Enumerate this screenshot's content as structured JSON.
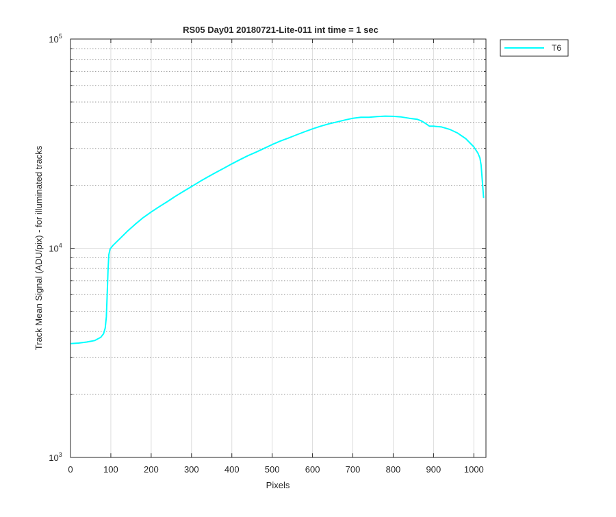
{
  "figure": {
    "background": "#ffffff"
  },
  "chart_data": {
    "type": "line",
    "title": "RS05 Day01 20180721-Lite-011 int time = 1 sec",
    "xlabel": "Pixels",
    "ylabel": "Track Mean Signal (ADU/pix) - for illuminated tracks",
    "xlim": [
      0,
      1030
    ],
    "ylim": [
      1000,
      100000
    ],
    "yscale": "log",
    "grid": true,
    "grid_style": "dotted minor, light major",
    "x_ticks": [
      "0",
      "100",
      "200",
      "300",
      "400",
      "500",
      "600",
      "700",
      "800",
      "900",
      "1000"
    ],
    "y_ticks": [
      {
        "base": "10",
        "exp": "3"
      },
      {
        "base": "10",
        "exp": "4"
      },
      {
        "base": "10",
        "exp": "5"
      }
    ],
    "legend": {
      "placement": "outside-top-right",
      "entries": [
        {
          "label": "T6",
          "color": "#00ffff"
        }
      ]
    },
    "series": [
      {
        "name": "T6",
        "color": "#00ffff",
        "points": [
          [
            1,
            3500
          ],
          [
            20,
            3520
          ],
          [
            40,
            3560
          ],
          [
            60,
            3620
          ],
          [
            75,
            3750
          ],
          [
            82,
            3900
          ],
          [
            86,
            4150
          ],
          [
            89,
            4700
          ],
          [
            91,
            6000
          ],
          [
            93,
            7800
          ],
          [
            95,
            9300
          ],
          [
            98,
            9900
          ],
          [
            105,
            10300
          ],
          [
            120,
            11000
          ],
          [
            140,
            12000
          ],
          [
            160,
            13000
          ],
          [
            180,
            14000
          ],
          [
            200,
            14900
          ],
          [
            220,
            15800
          ],
          [
            240,
            16700
          ],
          [
            260,
            17700
          ],
          [
            280,
            18700
          ],
          [
            300,
            19700
          ],
          [
            320,
            20800
          ],
          [
            340,
            21900
          ],
          [
            360,
            23000
          ],
          [
            380,
            24100
          ],
          [
            400,
            25300
          ],
          [
            420,
            26500
          ],
          [
            440,
            27700
          ],
          [
            460,
            28800
          ],
          [
            480,
            30000
          ],
          [
            500,
            31300
          ],
          [
            520,
            32500
          ],
          [
            540,
            33600
          ],
          [
            560,
            34800
          ],
          [
            580,
            36000
          ],
          [
            600,
            37200
          ],
          [
            620,
            38300
          ],
          [
            640,
            39300
          ],
          [
            660,
            40100
          ],
          [
            680,
            41000
          ],
          [
            700,
            41800
          ],
          [
            720,
            42300
          ],
          [
            740,
            42300
          ],
          [
            760,
            42600
          ],
          [
            780,
            42800
          ],
          [
            800,
            42700
          ],
          [
            820,
            42400
          ],
          [
            840,
            41800
          ],
          [
            860,
            41300
          ],
          [
            870,
            40600
          ],
          [
            880,
            39500
          ],
          [
            890,
            38300
          ],
          [
            900,
            38300
          ],
          [
            920,
            38000
          ],
          [
            940,
            37000
          ],
          [
            960,
            35500
          ],
          [
            980,
            33400
          ],
          [
            1000,
            30500
          ],
          [
            1010,
            28500
          ],
          [
            1015,
            27000
          ],
          [
            1018,
            25000
          ],
          [
            1021,
            21000
          ],
          [
            1024,
            17500
          ]
        ]
      }
    ]
  }
}
